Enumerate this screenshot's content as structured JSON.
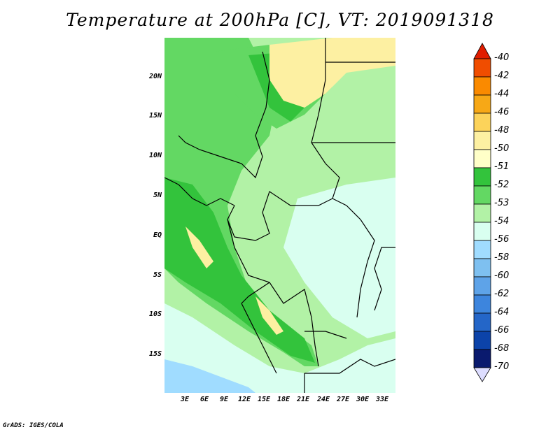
{
  "title": "Temperature at 200hPa [C], VT: 2019091318",
  "credit": "GrADS: IGES/COLA",
  "map": {
    "lat_labels": [
      "20N",
      "15N",
      "10N",
      "5N",
      "EQ",
      "5S",
      "10S",
      "15S"
    ],
    "lon_labels": [
      "3E",
      "6E",
      "9E",
      "12E",
      "15E",
      "18E",
      "21E",
      "24E",
      "27E",
      "30E",
      "33E"
    ]
  },
  "colorbar": {
    "labels": [
      "-40",
      "-42",
      "-44",
      "-46",
      "-48",
      "-50",
      "-51",
      "-52",
      "-53",
      "-54",
      "-56",
      "-58",
      "-60",
      "-62",
      "-64",
      "-66",
      "-68",
      "-70"
    ],
    "colors": [
      "#e01d00",
      "#f04d00",
      "#fa8a00",
      "#f7a816",
      "#fcd35a",
      "#fdf0a2",
      "#ffffc8",
      "#33c33c",
      "#63d863",
      "#b2f2a6",
      "#d9fff0",
      "#a0dcff",
      "#7ec0f0",
      "#5ea3e8",
      "#3d85dd",
      "#2466c8",
      "#0c43a9",
      "#0a1a6e",
      "#040a40",
      "#ddddff"
    ]
  }
}
